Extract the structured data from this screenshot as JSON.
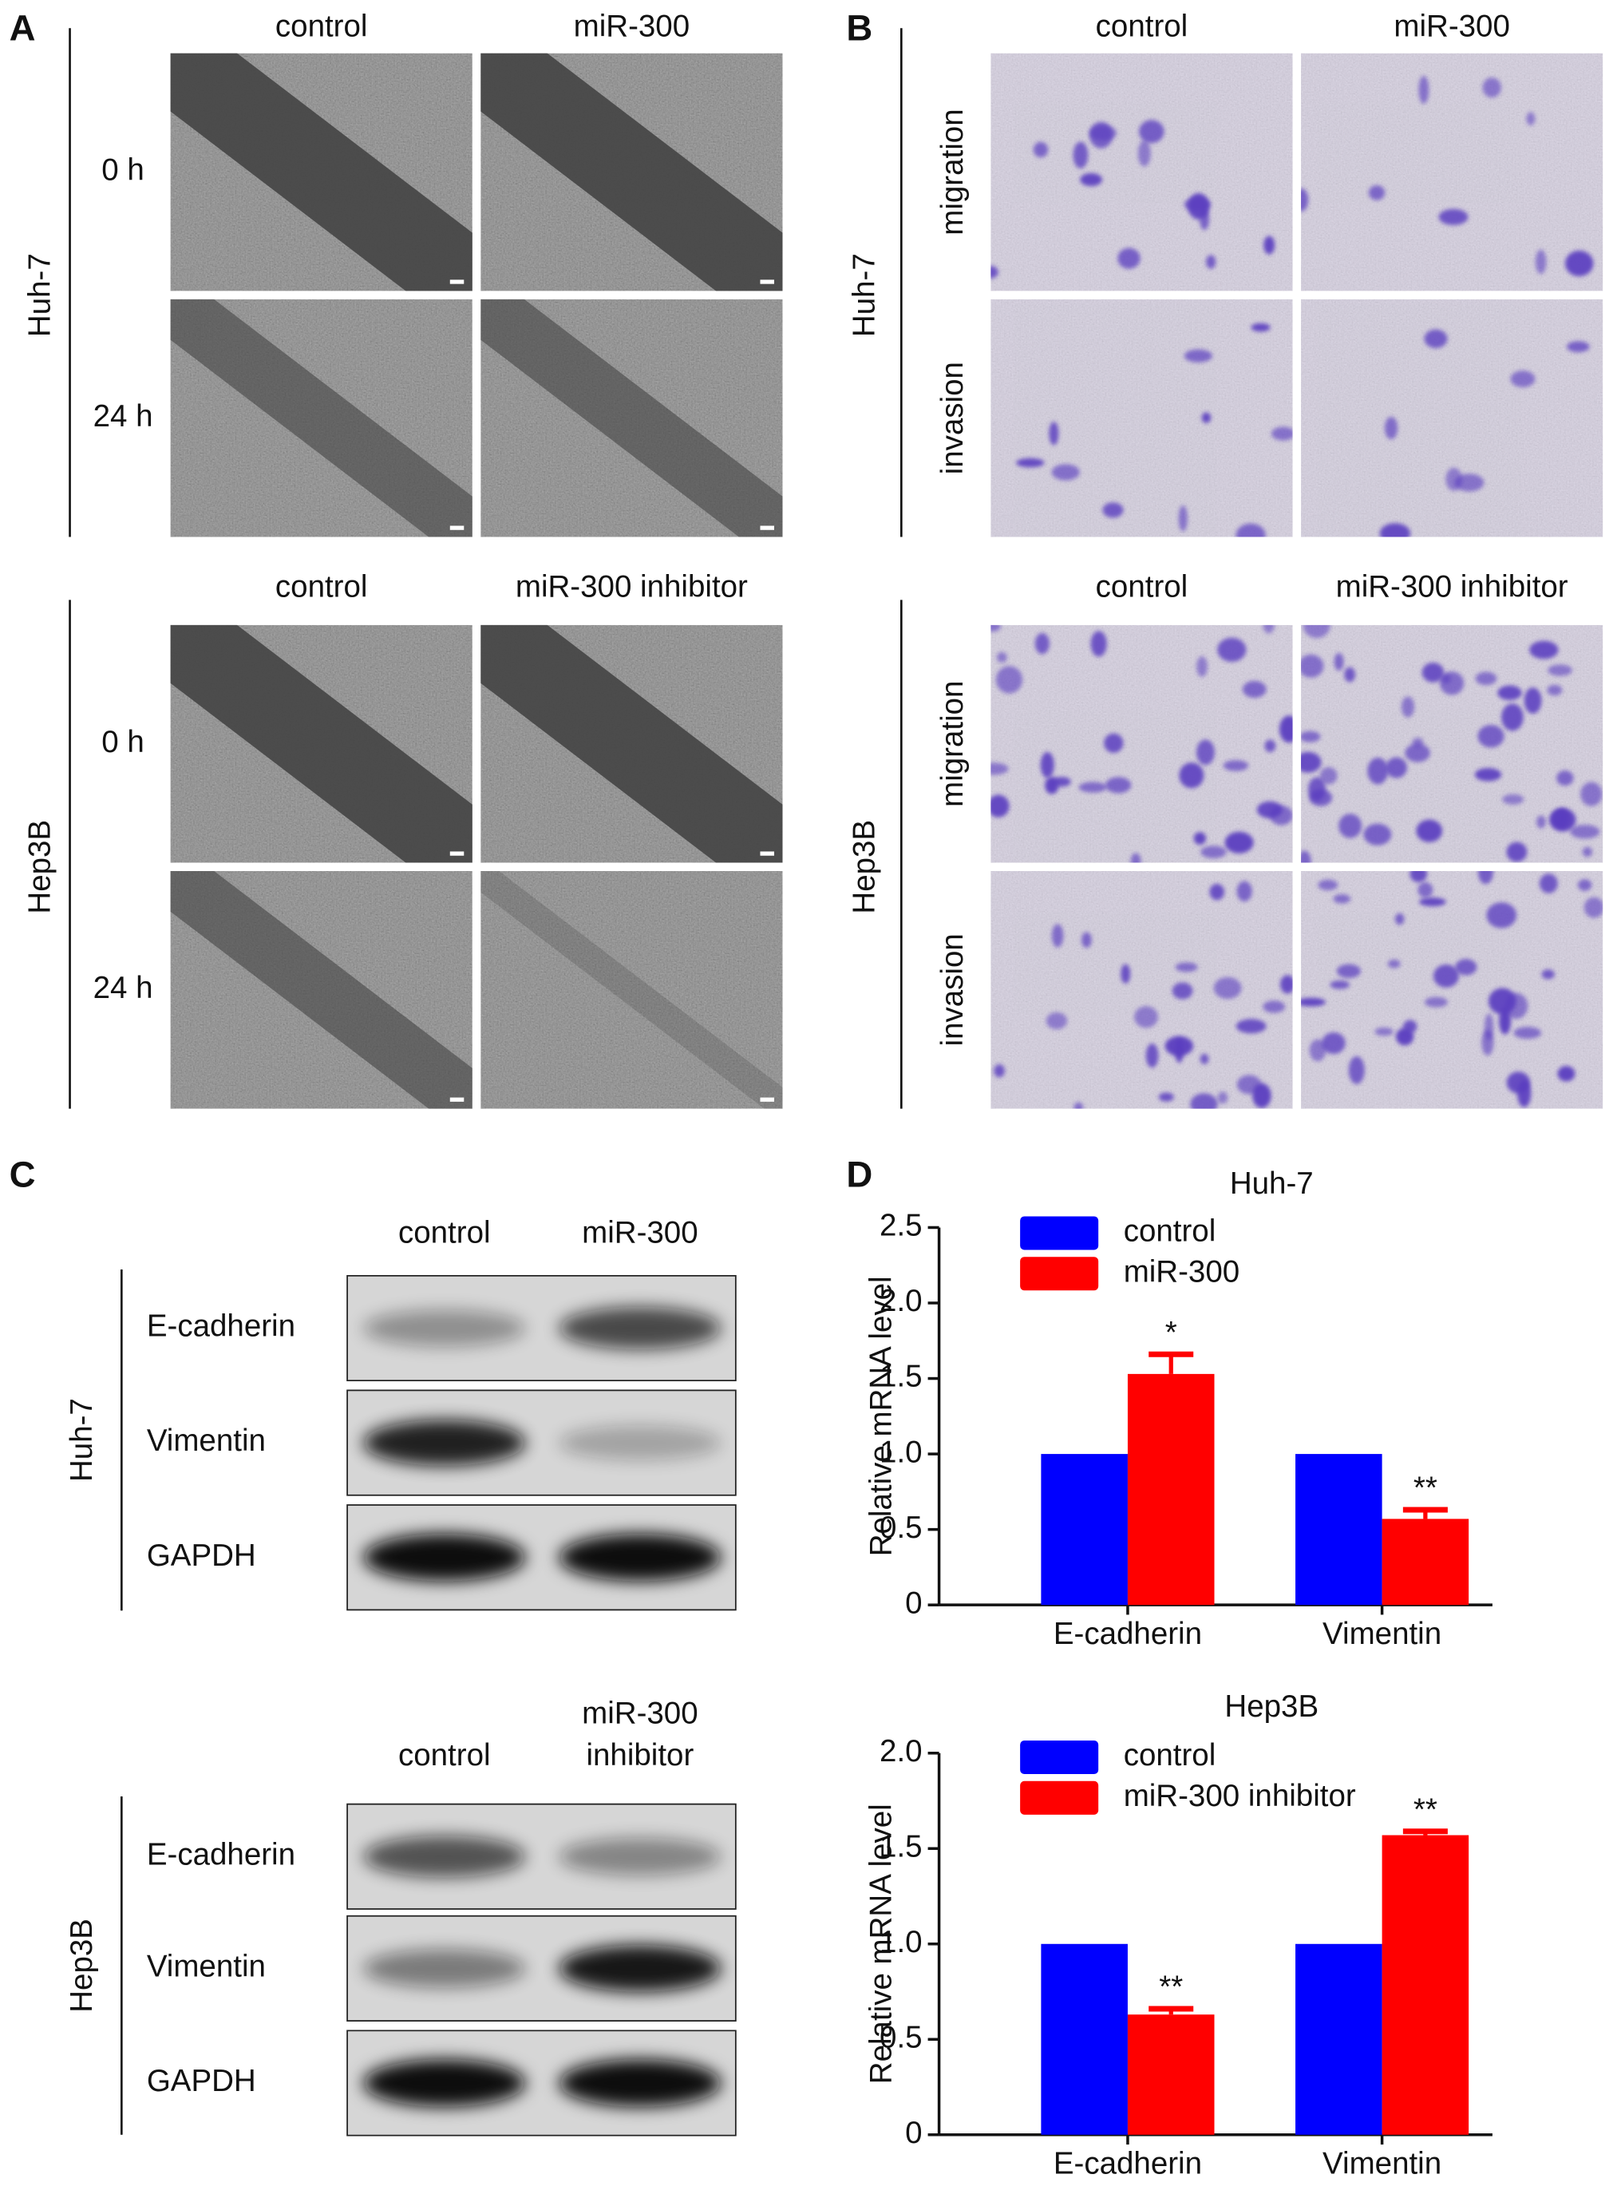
{
  "panels": {
    "A": {
      "label": "A",
      "sections": [
        {
          "cell_line": "Huh-7",
          "columns": [
            "control",
            "miR-300"
          ],
          "rows": [
            "0 h",
            "24 h"
          ]
        },
        {
          "cell_line": "Hep3B",
          "columns": [
            "control",
            "miR-300 inhibitor"
          ],
          "rows": [
            "0 h",
            "24 h"
          ]
        }
      ]
    },
    "B": {
      "label": "B",
      "sections": [
        {
          "cell_line": "Huh-7",
          "columns": [
            "control",
            "miR-300"
          ],
          "rows": [
            "migration",
            "invasion"
          ]
        },
        {
          "cell_line": "Hep3B",
          "columns": [
            "control",
            "miR-300 inhibitor"
          ],
          "rows": [
            "migration",
            "invasion"
          ]
        }
      ]
    },
    "C": {
      "label": "C",
      "sections": [
        {
          "cell_line": "Huh-7",
          "columns": [
            [
              "control"
            ],
            [
              "miR-300"
            ]
          ],
          "rows": [
            "E-cadherin",
            "Vimentin",
            "GAPDH"
          ]
        },
        {
          "cell_line": "Hep3B",
          "columns": [
            [
              "control"
            ],
            [
              "miR-300",
              "inhibitor"
            ]
          ],
          "rows": [
            "E-cadherin",
            "Vimentin",
            "GAPDH"
          ]
        }
      ]
    },
    "D": {
      "label": "D"
    }
  },
  "chart_data": [
    {
      "type": "bar",
      "title": "Huh-7",
      "y_label": "Relative mRNA level",
      "categories": [
        "E-cadherin",
        "Vimentin"
      ],
      "series": [
        {
          "name": "control",
          "color": "#0000ff",
          "values": [
            1.0,
            1.0
          ]
        },
        {
          "name": "miR-300",
          "color": "#ff0000",
          "values": [
            1.53,
            0.57
          ],
          "errors": [
            0.13,
            0.06
          ],
          "annotations": [
            "*",
            "**"
          ]
        }
      ],
      "ylim": [
        0,
        2.5
      ],
      "yticks": [
        0,
        0.5,
        {
          "value": 1,
          "label": "1.0"
        },
        1.5,
        {
          "value": 2,
          "label": "2.0"
        },
        2.5
      ]
    },
    {
      "type": "bar",
      "title": "Hep3B",
      "y_label": "Relative mRNA level",
      "categories": [
        "E-cadherin",
        "Vimentin"
      ],
      "series": [
        {
          "name": "control",
          "color": "#0000ff",
          "values": [
            1.0,
            1.0
          ]
        },
        {
          "name": "miR-300 inhibitor",
          "color": "#ff0000",
          "values": [
            0.63,
            1.57
          ],
          "errors": [
            0.03,
            0.02
          ],
          "annotations": [
            "**",
            "**"
          ]
        }
      ],
      "ylim": [
        0,
        2.0
      ],
      "yticks": [
        0,
        0.5,
        {
          "value": 1,
          "label": "1.0"
        },
        1.5,
        {
          "value": 2,
          "label": "2.0"
        }
      ]
    }
  ]
}
